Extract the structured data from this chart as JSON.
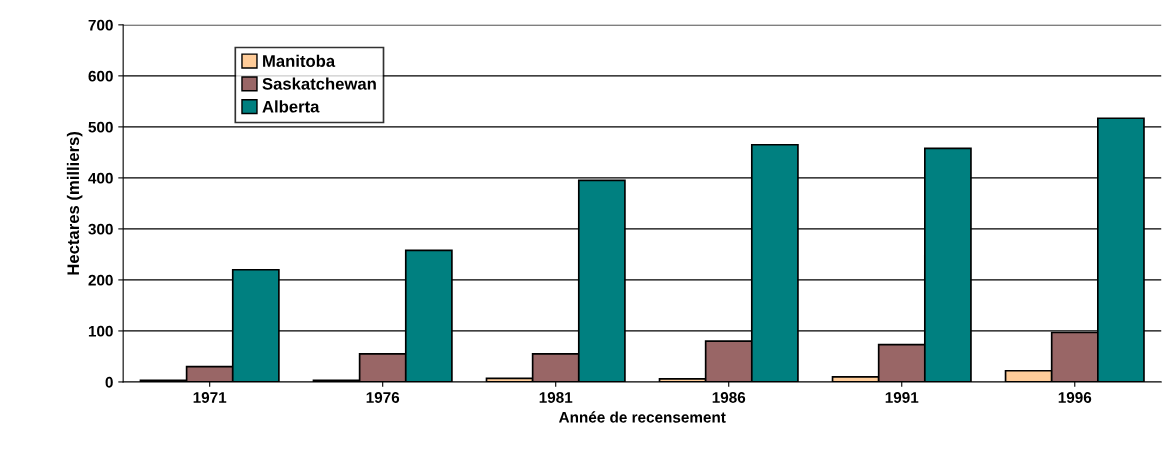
{
  "chart_data": {
    "type": "bar",
    "xlabel": "Année de recensement",
    "ylabel": "Hectares (milliers)",
    "categories": [
      "1971",
      "1976",
      "1981",
      "1986",
      "1991",
      "1996"
    ],
    "series": [
      {
        "name": "Manitoba",
        "color": "#ffcc99",
        "values": [
          3,
          3,
          7,
          6,
          10,
          22
        ]
      },
      {
        "name": "Saskatchewan",
        "color": "#996666",
        "values": [
          30,
          55,
          55,
          80,
          73,
          97
        ]
      },
      {
        "name": "Alberta",
        "color": "#008080",
        "values": [
          220,
          258,
          395,
          465,
          458,
          517
        ]
      }
    ],
    "ylim": [
      0,
      700
    ],
    "yticks": [
      0,
      100,
      200,
      300,
      400,
      500,
      600,
      700
    ],
    "grid": "y",
    "legend": "top left"
  }
}
